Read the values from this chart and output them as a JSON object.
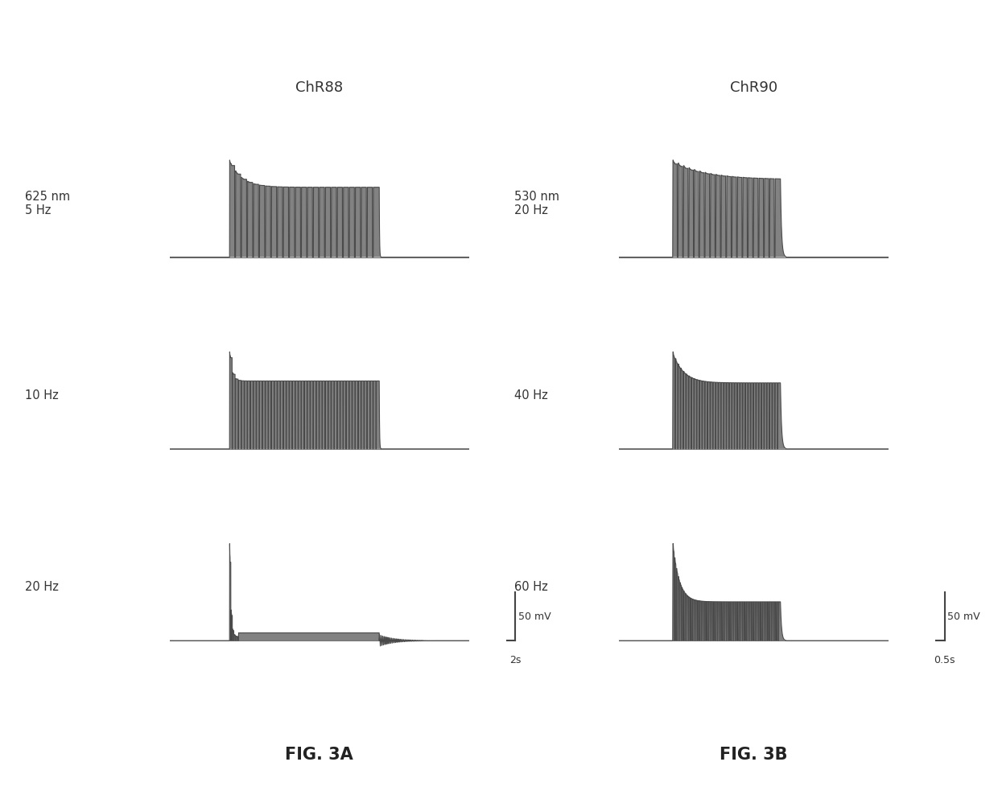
{
  "title_left": "ChR88",
  "title_right": "ChR90",
  "fig_label_left": "FIG. 3A",
  "fig_label_right": "FIG. 3B",
  "left_labels": [
    "625 nm\n5 Hz",
    "10 Hz",
    "20 Hz"
  ],
  "right_labels": [
    "530 nm\n20 Hz",
    "40 Hz",
    "60 Hz"
  ],
  "scale_bar_mv": "50 mV",
  "scale_bar_time_left": "2s",
  "scale_bar_time_right": "0.5s",
  "bg_color": "#ffffff",
  "trace_color": "#444444",
  "fill_color": "#666666"
}
